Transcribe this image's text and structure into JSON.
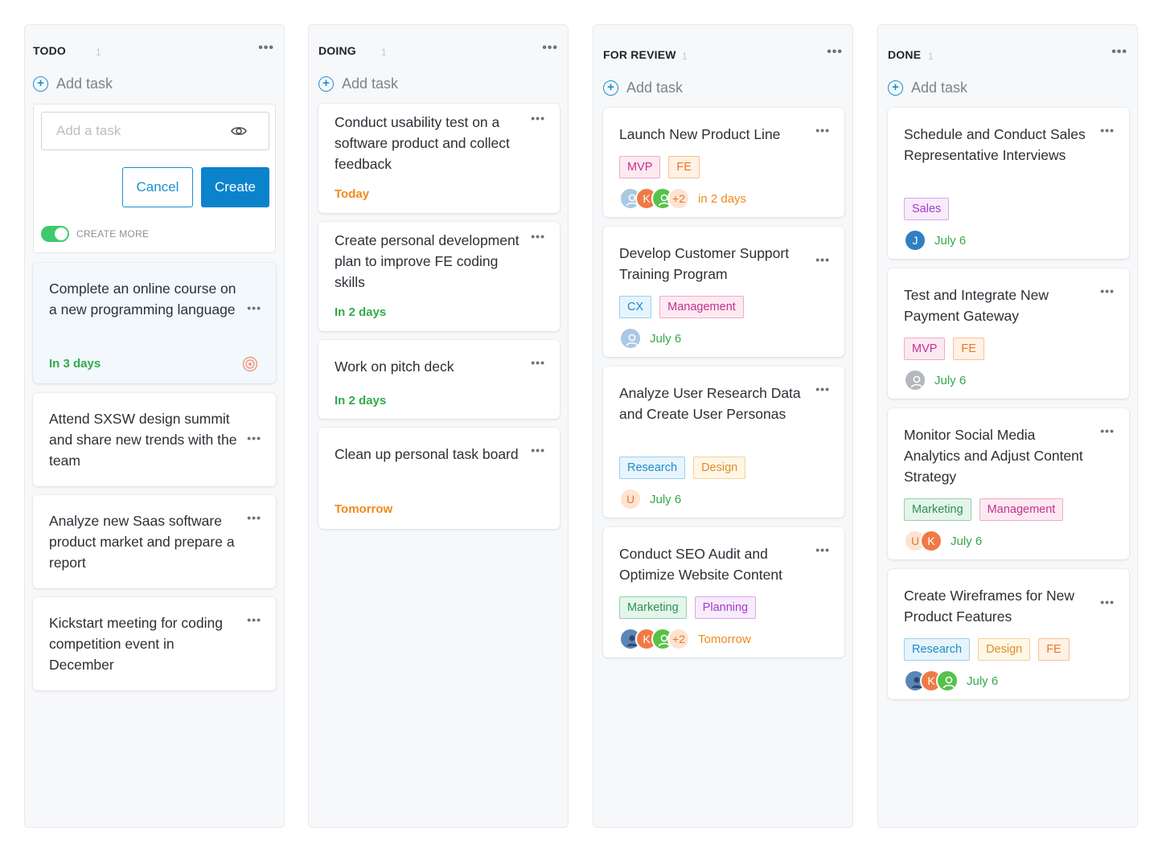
{
  "colors": {
    "accent": "#0b83cc",
    "due_orange": "#f08a1c",
    "due_green": "#35a94a",
    "toggle_on": "#3fca6b"
  },
  "add_task_label": "Add task",
  "todo": {
    "title": "TODO",
    "count": "1",
    "form": {
      "placeholder": "Add a task",
      "cancel_label": "Cancel",
      "create_label": "Create",
      "create_more_label": "CREATE MORE",
      "create_more_on": true
    },
    "cards": [
      {
        "title": "Complete an online course on a new programming language",
        "due": "In 3 days"
      },
      {
        "title": "Attend SXSW design summit and share new trends with the team"
      },
      {
        "title": "Analyze new Saas software product market and prepare a report"
      },
      {
        "title": "Kickstart meeting for coding competition event in December"
      }
    ]
  },
  "doing": {
    "title": "DOING",
    "count": "1",
    "cards": [
      {
        "title": "Conduct usability test on a software product and collect feedback",
        "due": "Today"
      },
      {
        "title": "Create personal development plan to improve FE coding skills",
        "due": "In 2 days"
      },
      {
        "title": "Work on pitch deck",
        "due": "In 2 days"
      },
      {
        "title": "Clean up personal task board",
        "due": "Tomorrow"
      }
    ]
  },
  "review": {
    "title": "FOR REVIEW",
    "count": "1",
    "cards": [
      {
        "title": "Launch New Product Line",
        "tags": [
          "MVP",
          "FE"
        ],
        "avatar_initials": [
          "K"
        ],
        "avatar_extra": "+2",
        "due": "in 2 days"
      },
      {
        "title": "Develop Customer Support Training Program",
        "tags": [
          "CX",
          "Management"
        ],
        "due": "July 6"
      },
      {
        "title": "Analyze User Research Data and Create User Personas",
        "tags": [
          "Research",
          "Design"
        ],
        "avatar_initials": [
          "U"
        ],
        "due": "July 6"
      },
      {
        "title": "Conduct SEO Audit and Optimize Website Content",
        "tags": [
          "Marketing",
          "Planning"
        ],
        "avatar_initials": [
          "K"
        ],
        "avatar_extra": "+2",
        "due": "Tomorrow"
      }
    ]
  },
  "done": {
    "title": "DONE",
    "count": "1",
    "cards": [
      {
        "title": "Schedule and Conduct Sales Representative Interviews",
        "tags": [
          "Sales"
        ],
        "avatar_initials": [
          "J"
        ],
        "due": "July 6"
      },
      {
        "title": "Test and Integrate New Payment Gateway",
        "tags": [
          "MVP",
          "FE"
        ],
        "due": "July 6"
      },
      {
        "title": "Monitor Social Media Analytics and Adjust Content Strategy",
        "tags": [
          "Marketing",
          "Management"
        ],
        "avatar_initials": [
          "U",
          "K"
        ],
        "due": "July 6"
      },
      {
        "title": "Create Wireframes for New Product Features",
        "tags": [
          "Research",
          "Design",
          "FE"
        ],
        "avatar_initials": [
          "K"
        ],
        "due": "July 6"
      }
    ]
  },
  "icons": {
    "more": "more-dots-icon",
    "add": "plus-circle-icon",
    "visibility": "eye-icon",
    "priority": "target-icon",
    "user": "user-silhouette-icon"
  }
}
